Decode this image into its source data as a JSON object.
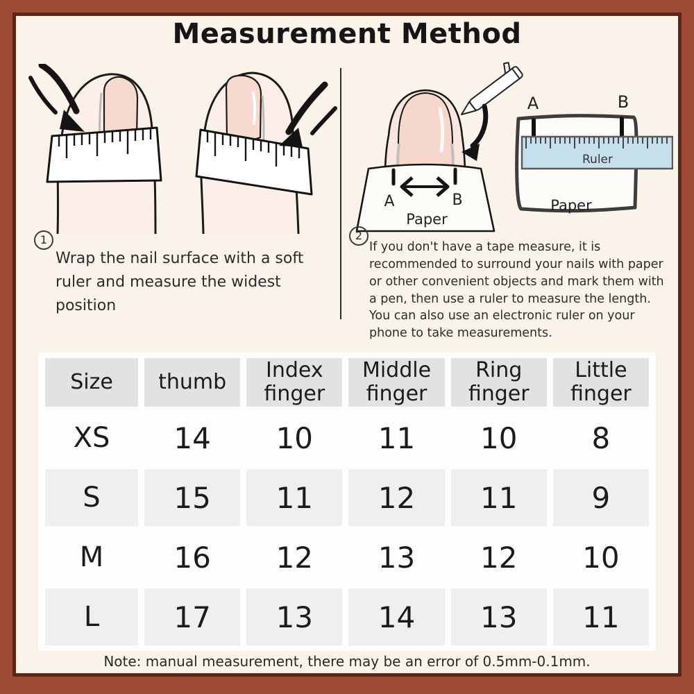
{
  "title": "Measurement Method",
  "steps": [
    {
      "number": "1",
      "text": "Wrap the nail surface with a soft ruler and measure the widest position"
    },
    {
      "number": "2",
      "text_line1": "If you don't have a tape measure, it is recommended to surround your nails with paper or other convenient objects and mark them with a pen, then use a ruler to measure the length.",
      "text_line2": "You can also use an electronic ruler on your phone to take measurements."
    }
  ],
  "diagram_labels": {
    "point_a": "A",
    "point_b": "B",
    "paper": "Paper",
    "point_a2": "A",
    "point_b2": "B",
    "ruler": "Ruler",
    "paper2": "Paper"
  },
  "size_table": {
    "type": "table",
    "headers": [
      "Size",
      "thumb",
      "Index\nfinger",
      "Middle\nfinger",
      "Ring\nfinger",
      "Little\nfinger"
    ],
    "rows": [
      {
        "size": "XS",
        "values": [
          "14",
          "10",
          "11",
          "10",
          "8"
        ]
      },
      {
        "size": "S",
        "values": [
          "15",
          "11",
          "12",
          "11",
          "9"
        ]
      },
      {
        "size": "M",
        "values": [
          "16",
          "12",
          "13",
          "12",
          "10"
        ]
      },
      {
        "size": "L",
        "values": [
          "17",
          "13",
          "14",
          "13",
          "11"
        ]
      }
    ]
  },
  "note": "Note: manual measurement, there may be an error of 0.5mm-0.1mm.",
  "colors": {
    "frame": "#9e4c38",
    "frame_inner_line": "#5e2617",
    "background": "#faf3ea",
    "table_background": "#fdfdfc",
    "header_cell": "#e4e2e0",
    "shaded_cell": "#f0efee",
    "ruler_blue": "#c6dfec",
    "skin": "#f9e6de",
    "nail": "#f5d7cc"
  }
}
